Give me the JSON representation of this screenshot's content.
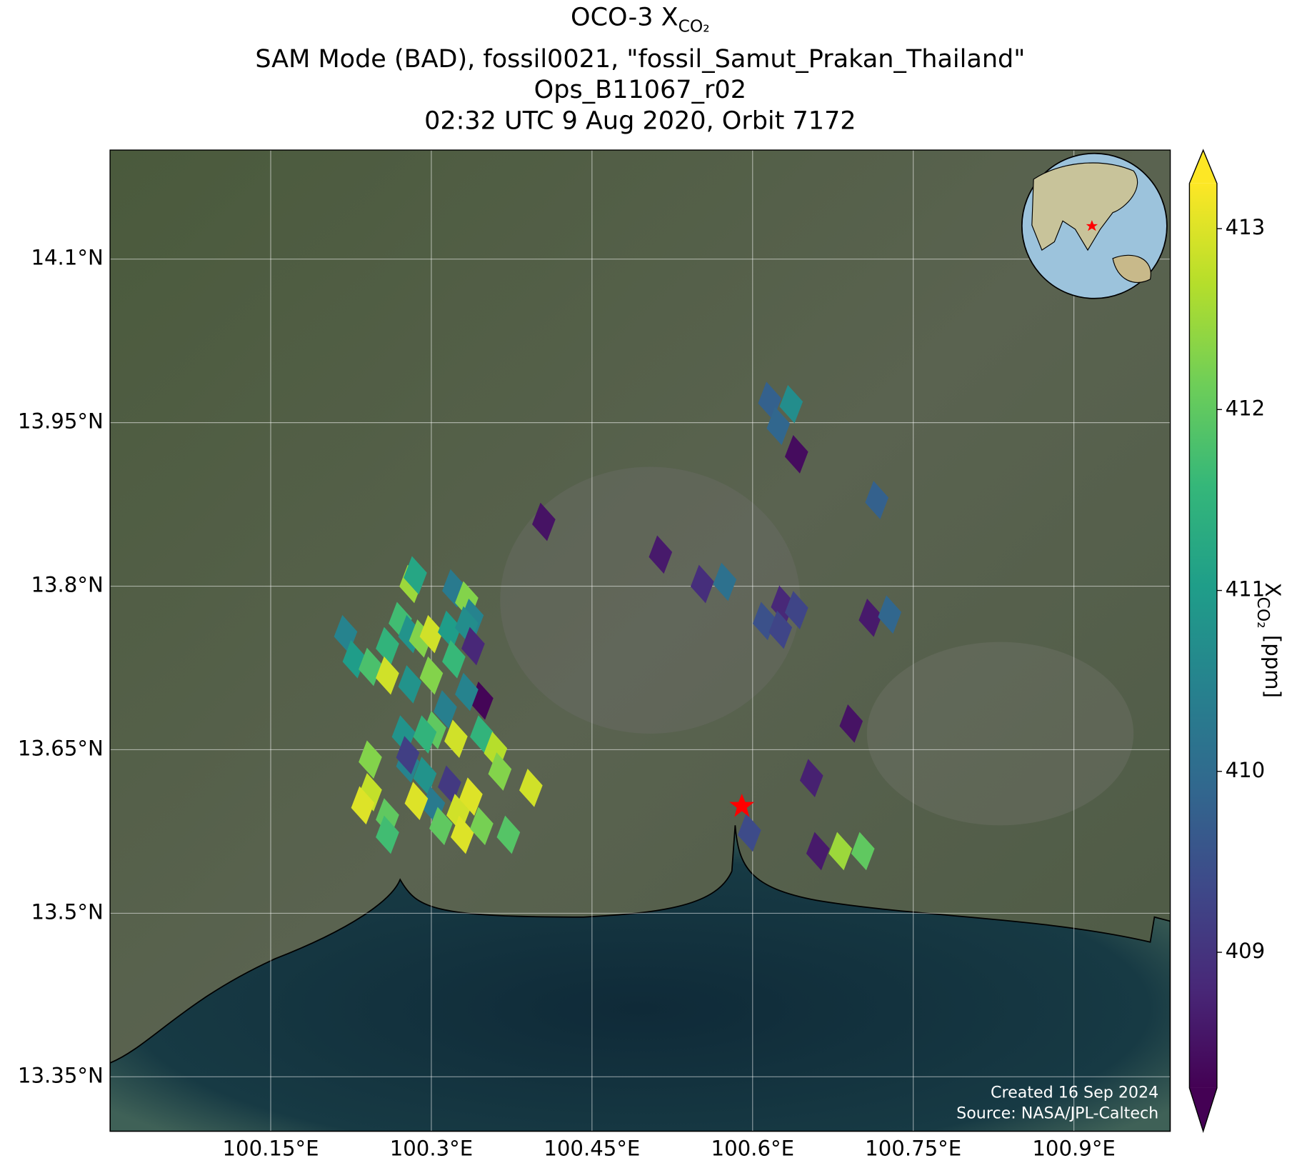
{
  "chart_data": {
    "type": "footprint-map",
    "title_symbol": "OCO-3 X",
    "title_subscript": "CO₂",
    "title_lines": [
      "SAM Mode (BAD), fossil0021, \"fossil_Samut_Prakan_Thailand\"",
      "Ops_B11067_r02",
      "02:32 UTC 9 Aug 2020, Orbit 7172"
    ],
    "xlim": [
      100.0,
      100.99
    ],
    "ylim": [
      13.3,
      14.2
    ],
    "xticks": [
      {
        "value": 100.15,
        "label": "100.15°E"
      },
      {
        "value": 100.3,
        "label": "100.3°E"
      },
      {
        "value": 100.45,
        "label": "100.45°E"
      },
      {
        "value": 100.6,
        "label": "100.6°E"
      },
      {
        "value": 100.75,
        "label": "100.75°E"
      },
      {
        "value": 100.9,
        "label": "100.9°E"
      }
    ],
    "yticks": [
      {
        "value": 14.1,
        "label": "14.1°N"
      },
      {
        "value": 13.95,
        "label": "13.95°N"
      },
      {
        "value": 13.8,
        "label": "13.8°N"
      },
      {
        "value": 13.65,
        "label": "13.65°N"
      },
      {
        "value": 13.5,
        "label": "13.5°N"
      },
      {
        "value": 13.35,
        "label": "13.35°N"
      }
    ],
    "grid": true,
    "colormap": "viridis",
    "clim": [
      408.25,
      413.25
    ],
    "colorbar_ticks": [
      409,
      410,
      411,
      412,
      413
    ],
    "colorbar_extend": "both",
    "colorbar_symbol": "X",
    "colorbar_subscript": "CO₂",
    "colorbar_unit": "[ppm]",
    "footer": [
      "Created 16 Sep 2024",
      "Source: NASA/JPL-Caltech"
    ],
    "lon": [
      100.616,
      100.636,
      100.624,
      100.641,
      100.716,
      100.405,
      100.514,
      100.553,
      100.574,
      100.628,
      100.641,
      100.611,
      100.626,
      100.71,
      100.728,
      100.692,
      100.655,
      100.597,
      100.661,
      100.682,
      100.703,
      100.281,
      100.285,
      100.321,
      100.333,
      100.338,
      100.22,
      100.228,
      100.243,
      100.259,
      100.271,
      100.28,
      100.29,
      100.3,
      100.317,
      100.333,
      100.259,
      100.28,
      100.3,
      100.321,
      100.339,
      100.347,
      100.333,
      100.313,
      100.303,
      100.323,
      100.347,
      100.36,
      100.364,
      100.393,
      100.243,
      100.243,
      100.236,
      100.259,
      100.259,
      100.278,
      100.274,
      100.294,
      100.302,
      100.286,
      100.309,
      100.317,
      100.325,
      100.329,
      100.337,
      100.347,
      100.372,
      100.278,
      100.294
    ],
    "lat": [
      13.97,
      13.967,
      13.947,
      13.921,
      13.879,
      13.859,
      13.829,
      13.802,
      13.804,
      13.783,
      13.778,
      13.768,
      13.76,
      13.771,
      13.774,
      13.674,
      13.624,
      13.574,
      13.557,
      13.557,
      13.557,
      13.802,
      13.81,
      13.798,
      13.787,
      13.771,
      13.756,
      13.733,
      13.726,
      13.745,
      13.768,
      13.756,
      13.752,
      13.756,
      13.76,
      13.764,
      13.718,
      13.71,
      13.718,
      13.733,
      13.745,
      13.695,
      13.703,
      13.687,
      13.668,
      13.66,
      13.664,
      13.649,
      13.63,
      13.615,
      13.641,
      13.611,
      13.599,
      13.588,
      13.572,
      13.637,
      13.664,
      13.626,
      13.599,
      13.603,
      13.58,
      13.618,
      13.592,
      13.572,
      13.607,
      13.58,
      13.572,
      13.645,
      13.664
    ],
    "values": [
      409.8,
      410.7,
      409.9,
      408.4,
      409.8,
      408.5,
      408.6,
      408.9,
      410.1,
      408.8,
      409.3,
      409.5,
      409.3,
      408.6,
      409.9,
      408.5,
      408.7,
      409.4,
      408.6,
      412.5,
      412.0,
      412.5,
      411.2,
      410.3,
      412.3,
      410.5,
      410.5,
      411.0,
      411.8,
      411.5,
      411.7,
      410.8,
      412.3,
      412.9,
      411.0,
      410.7,
      412.9,
      410.8,
      412.3,
      411.6,
      408.8,
      408.3,
      410.5,
      410.4,
      412.0,
      412.9,
      411.5,
      412.7,
      412.3,
      412.9,
      412.3,
      412.8,
      413.0,
      412.0,
      411.7,
      410.5,
      410.8,
      410.8,
      410.3,
      413.0,
      412.0,
      409.1,
      412.9,
      413.0,
      413.0,
      412.2,
      411.9,
      409.2,
      411.5
    ]
  }
}
